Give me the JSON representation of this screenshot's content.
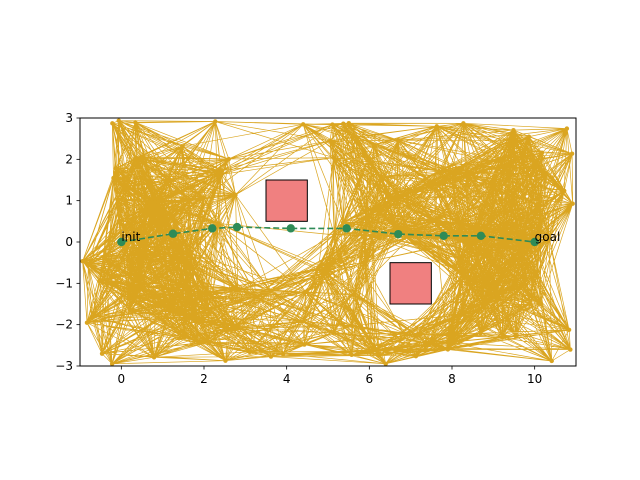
{
  "chart_data": {
    "type": "scatter",
    "title": "",
    "xlabel": "",
    "ylabel": "",
    "xlim": [
      -1,
      11
    ],
    "ylim": [
      -3,
      3
    ],
    "xticks": [
      0,
      2,
      4,
      6,
      8,
      10
    ],
    "yticks": [
      -3,
      -2,
      -1,
      0,
      1,
      2,
      3
    ],
    "grid": false,
    "legend": "none",
    "roadmap_color": "#daa520",
    "path_color": "#2e8b57",
    "obstacle_color": "#f08080",
    "obstacles": [
      {
        "x": [
          3.5,
          4.5
        ],
        "y": [
          0.5,
          1.5
        ]
      },
      {
        "x": [
          6.5,
          7.5
        ],
        "y": [
          -1.5,
          -0.5
        ]
      }
    ],
    "path": {
      "x": [
        0,
        1.25,
        2.2,
        2.8,
        4.1,
        5.45,
        6.7,
        7.8,
        8.7,
        10
      ],
      "y": [
        0,
        0.2,
        0.33,
        0.36,
        0.33,
        0.33,
        0.19,
        0.15,
        0.15,
        0
      ]
    },
    "annotations": [
      {
        "text": "init",
        "x": 0,
        "y": 0
      },
      {
        "text": "goal",
        "x": 10,
        "y": 0
      }
    ]
  }
}
